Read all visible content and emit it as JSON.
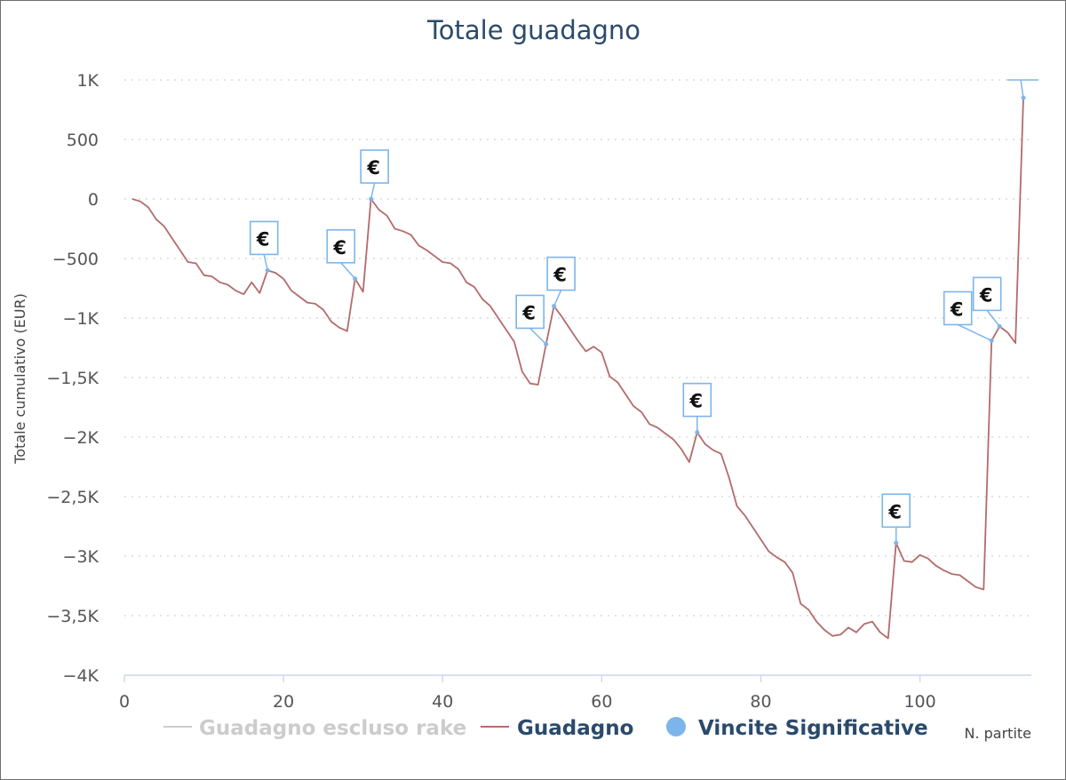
{
  "chart_data": {
    "type": "line",
    "title": "Totale guadagno",
    "xlabel": "N. partite",
    "ylabel": "Totale cumulativo (EUR)",
    "xlim": [
      0,
      114
    ],
    "ylim": [
      -4000,
      1000
    ],
    "x_ticks": [
      {
        "value": 0,
        "label": "0"
      },
      {
        "value": 20,
        "label": "20"
      },
      {
        "value": 40,
        "label": "40"
      },
      {
        "value": 60,
        "label": "60"
      },
      {
        "value": 80,
        "label": "80"
      },
      {
        "value": 100,
        "label": "100"
      }
    ],
    "y_ticks": [
      {
        "value": 1000,
        "label": "1K"
      },
      {
        "value": 500,
        "label": "500"
      },
      {
        "value": 0,
        "label": "0"
      },
      {
        "value": -500,
        "label": "−500"
      },
      {
        "value": -1000,
        "label": "−1K"
      },
      {
        "value": -1500,
        "label": "−1,5K"
      },
      {
        "value": -2000,
        "label": "−2K"
      },
      {
        "value": -2500,
        "label": "−2,5K"
      },
      {
        "value": -3000,
        "label": "−3K"
      },
      {
        "value": -3500,
        "label": "−3,5K"
      },
      {
        "value": -4000,
        "label": "−4K"
      }
    ],
    "grid": true,
    "legend_placement": "bottom",
    "legend": [
      {
        "name": "Guadagno escluso rake",
        "color": "#cccccc",
        "symbol": "line",
        "visible": false
      },
      {
        "name": "Guadagno",
        "color": "#b36b6b",
        "symbol": "line",
        "visible": true
      },
      {
        "name": "Vincite Significative",
        "color": "#7cb5ec",
        "symbol": "circle",
        "visible": true
      }
    ],
    "series": [
      {
        "name": "Guadagno",
        "color": "#b36b6b",
        "x": [
          1,
          2,
          3,
          4,
          5,
          6,
          7,
          8,
          9,
          10,
          11,
          12,
          13,
          14,
          15,
          16,
          17,
          18,
          19,
          20,
          21,
          22,
          23,
          24,
          25,
          26,
          27,
          28,
          29,
          30,
          31,
          32,
          33,
          34,
          35,
          36,
          37,
          38,
          39,
          40,
          41,
          42,
          43,
          44,
          45,
          46,
          47,
          48,
          49,
          50,
          51,
          52,
          53,
          54,
          55,
          56,
          57,
          58,
          59,
          60,
          61,
          62,
          63,
          64,
          65,
          66,
          67,
          68,
          69,
          70,
          71,
          72,
          73,
          74,
          75,
          76,
          77,
          78,
          79,
          80,
          81,
          82,
          83,
          84,
          85,
          86,
          87,
          88,
          89,
          90,
          91,
          92,
          93,
          94,
          95,
          96,
          97,
          98,
          99,
          100,
          101,
          102,
          103,
          104,
          105,
          106,
          107,
          108,
          109,
          110,
          111,
          112,
          113
        ],
        "y": [
          0,
          -20,
          -70,
          -170,
          -230,
          -330,
          -430,
          -530,
          -540,
          -640,
          -650,
          -700,
          -720,
          -770,
          -800,
          -700,
          -790,
          -600,
          -620,
          -670,
          -770,
          -820,
          -870,
          -880,
          -930,
          -1030,
          -1080,
          -1110,
          -670,
          -780,
          0,
          -90,
          -140,
          -250,
          -270,
          -300,
          -390,
          -430,
          -480,
          -530,
          -540,
          -590,
          -700,
          -740,
          -840,
          -900,
          -1000,
          -1100,
          -1200,
          -1450,
          -1550,
          -1560,
          -1220,
          -900,
          -990,
          -1090,
          -1190,
          -1280,
          -1240,
          -1290,
          -1490,
          -1540,
          -1640,
          -1740,
          -1790,
          -1890,
          -1920,
          -1970,
          -2020,
          -2100,
          -2210,
          -1960,
          -2060,
          -2110,
          -2140,
          -2340,
          -2580,
          -2660,
          -2760,
          -2860,
          -2960,
          -3010,
          -3050,
          -3140,
          -3400,
          -3450,
          -3550,
          -3620,
          -3670,
          -3660,
          -3600,
          -3640,
          -3570,
          -3550,
          -3640,
          -3690,
          -2890,
          -3040,
          -3050,
          -2990,
          -3020,
          -3080,
          -3120,
          -3150,
          -3160,
          -3210,
          -3260,
          -3280,
          -1190,
          -1070,
          -1120,
          -1210,
          850
        ]
      }
    ],
    "significant_wins": {
      "name": "Vincite Significative",
      "color": "#7cb5ec",
      "flag_label": "€",
      "points": [
        {
          "x": 18,
          "y": -600
        },
        {
          "x": 29,
          "y": -670
        },
        {
          "x": 31,
          "y": 0
        },
        {
          "x": 53,
          "y": -1220
        },
        {
          "x": 54,
          "y": -900
        },
        {
          "x": 72,
          "y": -1960
        },
        {
          "x": 97,
          "y": -2890
        },
        {
          "x": 109,
          "y": -1190
        },
        {
          "x": 110,
          "y": -1070
        },
        {
          "x": 113,
          "y": 850
        }
      ]
    }
  }
}
